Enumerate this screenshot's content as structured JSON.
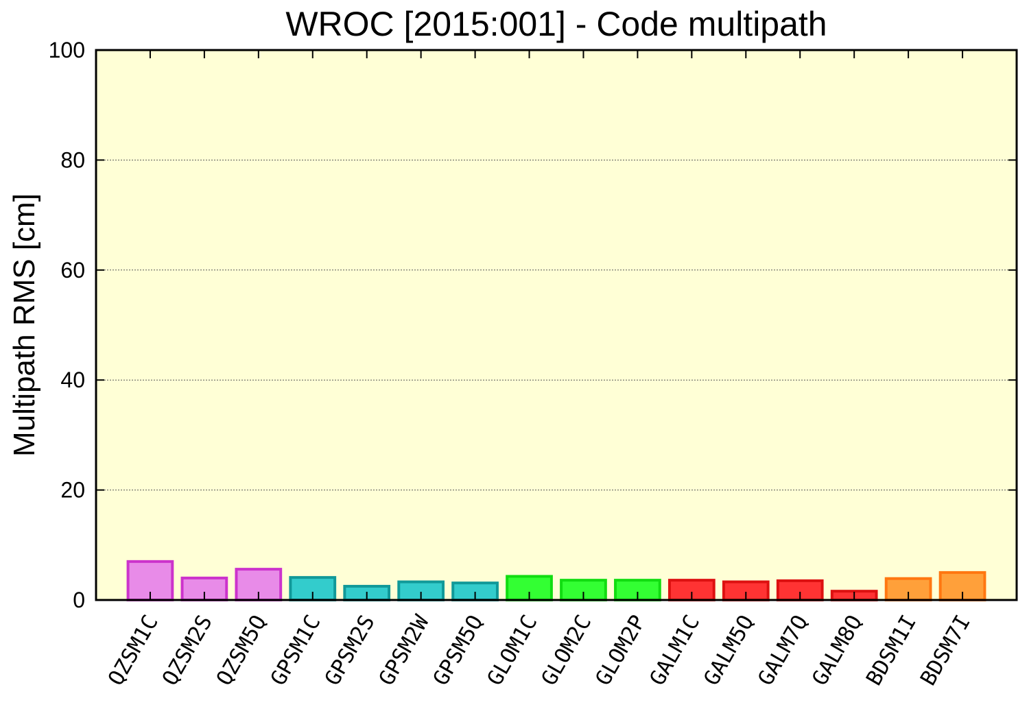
{
  "chart_data": {
    "type": "bar",
    "title": "WROC [2015:001] - Code multipath",
    "xlabel": "",
    "ylabel": "Multipath RMS [cm]",
    "ylim": [
      0,
      100
    ],
    "yticks": [
      0,
      20,
      40,
      60,
      80,
      100
    ],
    "grid": true,
    "background": "#ffffd6",
    "categories": [
      "QZSM1C",
      "QZSM2S",
      "QZSM5Q",
      "GPSM1C",
      "GPSM2S",
      "GPSM2W",
      "GPSM5Q",
      "GLOM1C",
      "GLOM2C",
      "GLOM2P",
      "GALM1C",
      "GALM5Q",
      "GALM7Q",
      "GALM8Q",
      "BDSM1I",
      "BDSM7I"
    ],
    "values": [
      7.0,
      4.0,
      5.6,
      4.1,
      2.5,
      3.3,
      3.1,
      4.3,
      3.6,
      3.6,
      3.6,
      3.3,
      3.5,
      1.6,
      3.9,
      5.0
    ],
    "bar_colors": [
      {
        "fill": "#e88be8",
        "stroke": "#cc33cc"
      },
      {
        "fill": "#e88be8",
        "stroke": "#cc33cc"
      },
      {
        "fill": "#e88be8",
        "stroke": "#cc33cc"
      },
      {
        "fill": "#33cccc",
        "stroke": "#119999"
      },
      {
        "fill": "#33cccc",
        "stroke": "#119999"
      },
      {
        "fill": "#33cccc",
        "stroke": "#119999"
      },
      {
        "fill": "#33cccc",
        "stroke": "#119999"
      },
      {
        "fill": "#33ff33",
        "stroke": "#11dd11"
      },
      {
        "fill": "#33ff33",
        "stroke": "#11dd11"
      },
      {
        "fill": "#33ff33",
        "stroke": "#11dd11"
      },
      {
        "fill": "#ff3333",
        "stroke": "#dd1111"
      },
      {
        "fill": "#ff3333",
        "stroke": "#dd1111"
      },
      {
        "fill": "#ff3333",
        "stroke": "#dd1111"
      },
      {
        "fill": "#ff3333",
        "stroke": "#dd1111"
      },
      {
        "fill": "#ffa03a",
        "stroke": "#ff7711"
      },
      {
        "fill": "#ffa03a",
        "stroke": "#ff7711"
      }
    ]
  }
}
